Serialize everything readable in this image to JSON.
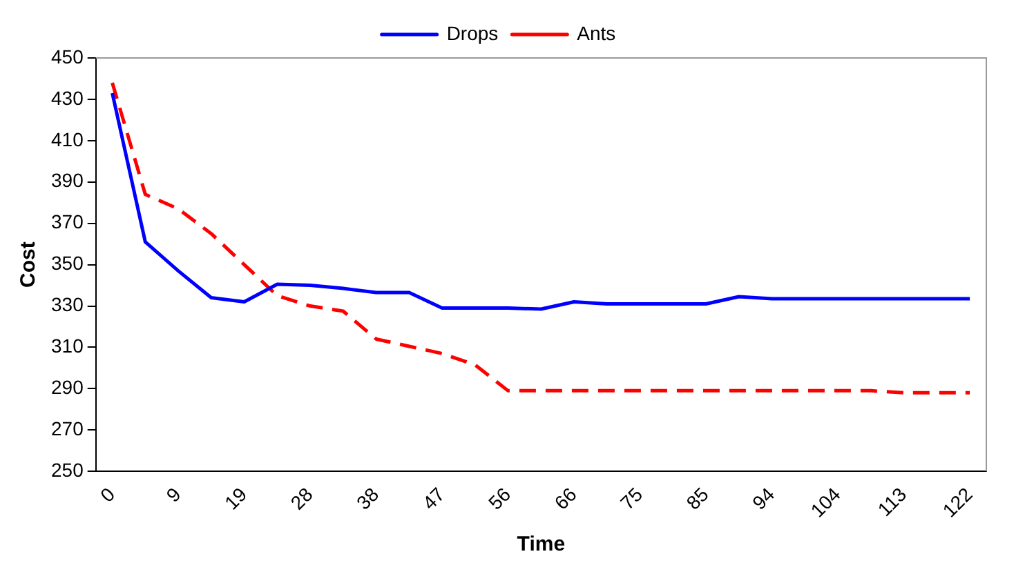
{
  "chart_data": {
    "type": "line",
    "xlabel": "Time",
    "ylabel": "Cost",
    "categories": [
      "0",
      null,
      "9",
      null,
      "19",
      null,
      "28",
      null,
      "38",
      null,
      "47",
      null,
      "56",
      null,
      "66",
      null,
      "75",
      null,
      "85",
      null,
      "94",
      null,
      "104",
      null,
      "113",
      null,
      "122"
    ],
    "series": [
      {
        "name": "Drops",
        "color": "#0000ff",
        "line_style": "solid",
        "values": [
          433,
          361,
          347,
          334,
          332,
          340.5,
          340,
          338.5,
          336.5,
          336.5,
          329,
          329,
          329,
          328.5,
          332,
          331,
          331,
          331,
          331,
          334.5,
          333.5,
          333.5,
          333.5,
          333.5,
          333.5,
          333.5,
          333.5
        ]
      },
      {
        "name": "Ants",
        "color": "#ff0000",
        "line_style": "dashed",
        "values": [
          438,
          384,
          377,
          365,
          350,
          335,
          330,
          327.5,
          314,
          310.5,
          307,
          301.5,
          289,
          289,
          289,
          289,
          289,
          289,
          289,
          289,
          289,
          289,
          289,
          289,
          288,
          288,
          288
        ]
      }
    ],
    "ylim": [
      250,
      450
    ],
    "yticks": [
      250,
      270,
      290,
      310,
      330,
      350,
      370,
      390,
      410,
      430,
      450
    ],
    "grid": false,
    "legend": "top",
    "marker": "none"
  }
}
